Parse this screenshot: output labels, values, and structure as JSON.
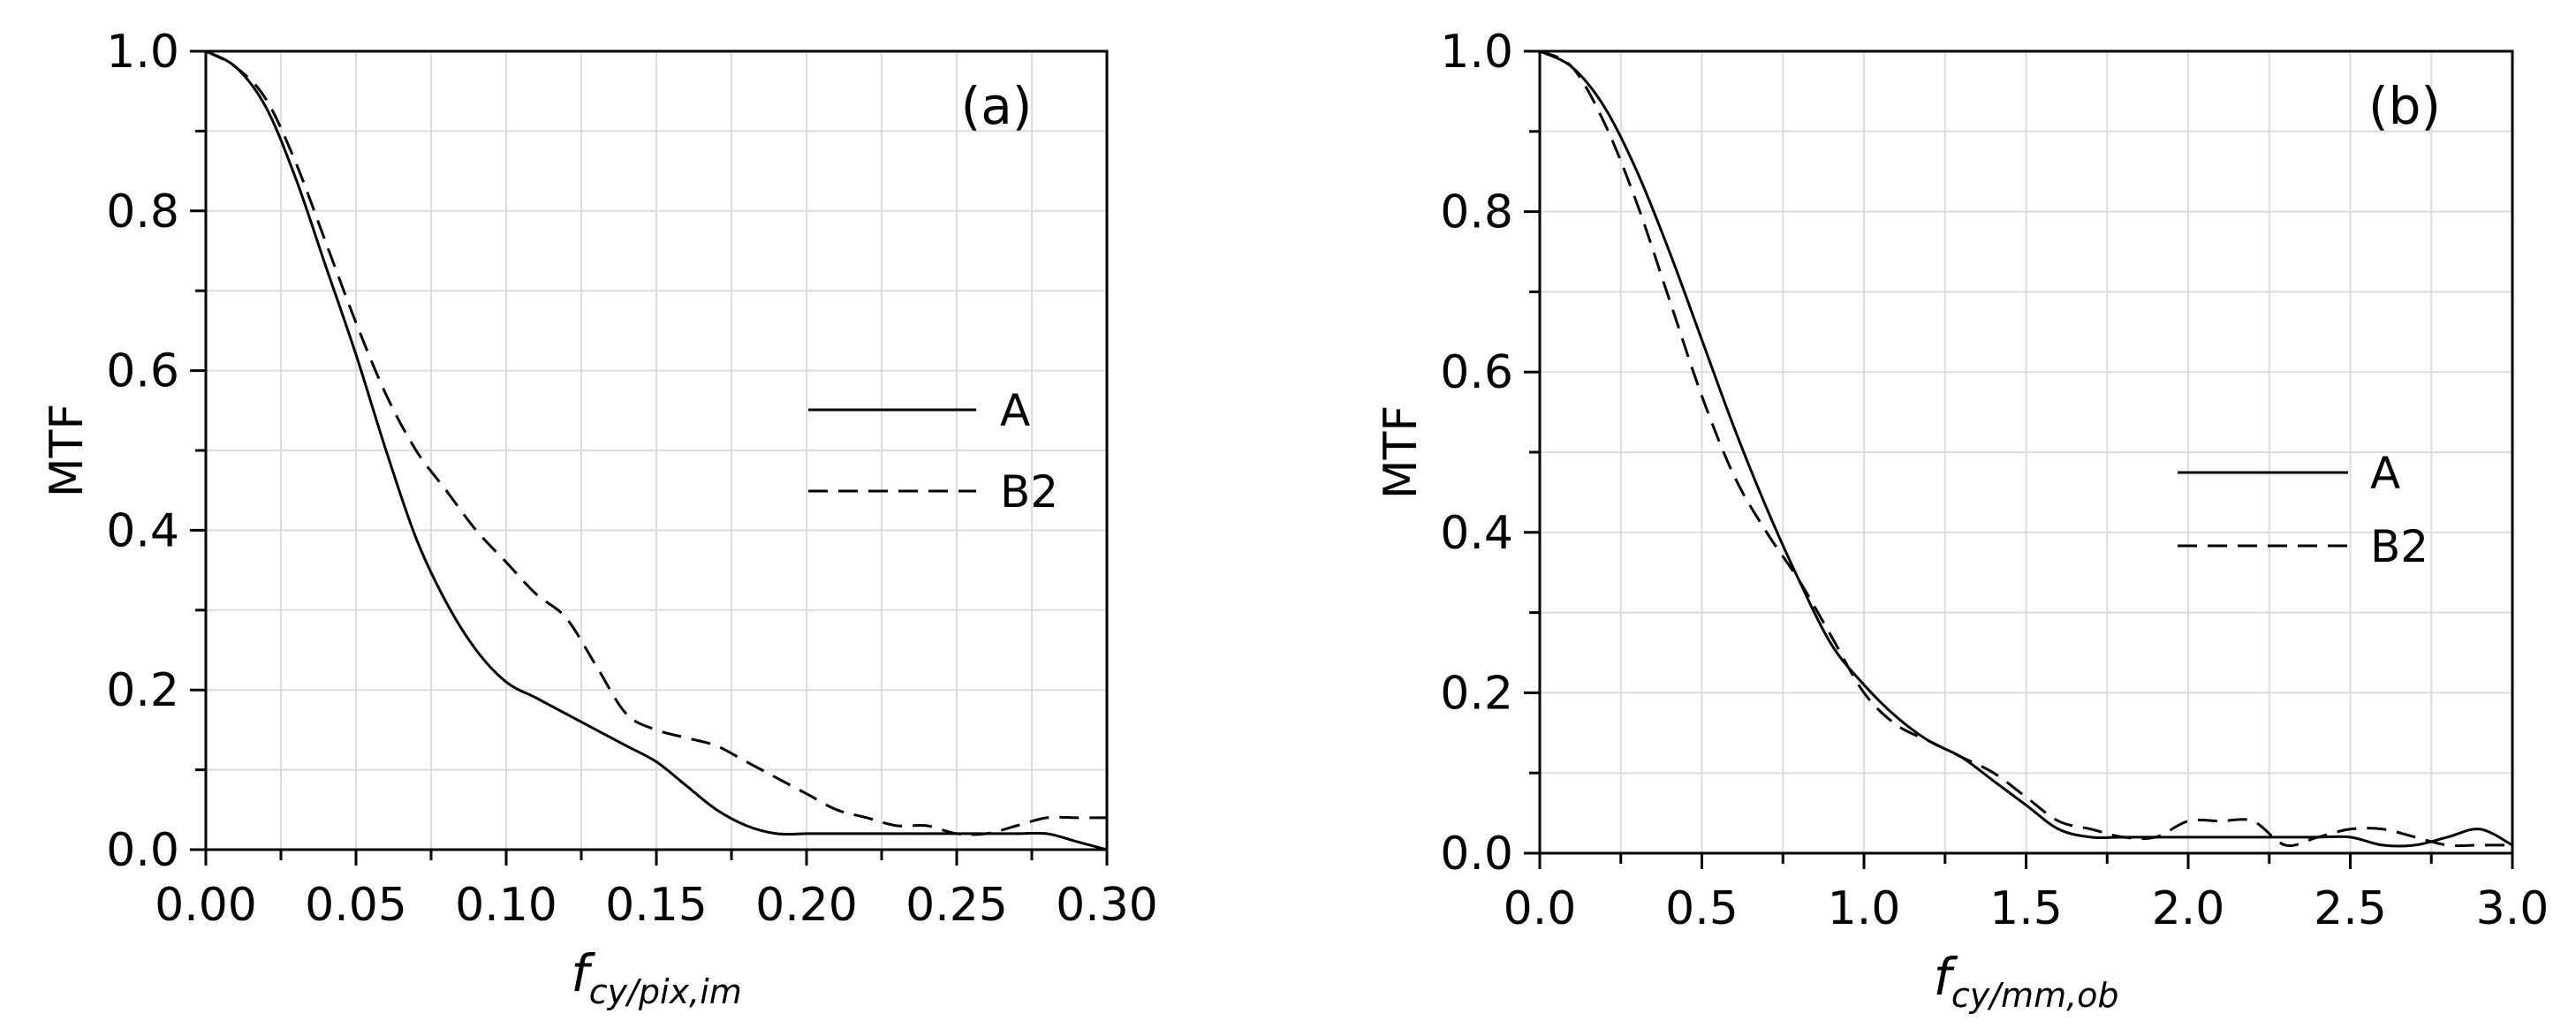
{
  "chart_data": [
    {
      "type": "line",
      "panel_label": "(a)",
      "ylabel": "MTF",
      "xlabel": {
        "main": "f",
        "sub": "cy/pix,im"
      },
      "xlim": [
        0,
        0.3
      ],
      "ylim": [
        0,
        1.0
      ],
      "x_ticks": [
        "0.00",
        "0.05",
        "0.10",
        "0.15",
        "0.20",
        "0.25",
        "0.30"
      ],
      "y_ticks": [
        "0.0",
        "0.2",
        "0.4",
        "0.6",
        "0.8",
        "1.0"
      ],
      "grid": true,
      "legend_position": "right-middle",
      "series": [
        {
          "name": "A",
          "style": "solid",
          "x": [
            0,
            0.01,
            0.02,
            0.03,
            0.04,
            0.05,
            0.06,
            0.07,
            0.08,
            0.09,
            0.1,
            0.11,
            0.12,
            0.13,
            0.14,
            0.15,
            0.16,
            0.17,
            0.18,
            0.19,
            0.2,
            0.21,
            0.22,
            0.23,
            0.24,
            0.25,
            0.26,
            0.27,
            0.28,
            0.29,
            0.3
          ],
          "y": [
            1.0,
            0.98,
            0.93,
            0.84,
            0.73,
            0.62,
            0.5,
            0.39,
            0.31,
            0.25,
            0.21,
            0.19,
            0.17,
            0.15,
            0.13,
            0.11,
            0.08,
            0.05,
            0.03,
            0.02,
            0.02,
            0.02,
            0.02,
            0.02,
            0.02,
            0.02,
            0.02,
            0.02,
            0.02,
            0.01,
            0.0
          ]
        },
        {
          "name": "B2",
          "style": "dashed",
          "x": [
            0,
            0.01,
            0.02,
            0.03,
            0.04,
            0.05,
            0.06,
            0.07,
            0.08,
            0.09,
            0.1,
            0.11,
            0.12,
            0.13,
            0.14,
            0.15,
            0.16,
            0.17,
            0.18,
            0.19,
            0.2,
            0.21,
            0.22,
            0.23,
            0.24,
            0.25,
            0.26,
            0.27,
            0.28,
            0.29,
            0.3
          ],
          "y": [
            1.0,
            0.98,
            0.94,
            0.86,
            0.76,
            0.66,
            0.57,
            0.5,
            0.45,
            0.4,
            0.36,
            0.32,
            0.29,
            0.23,
            0.17,
            0.15,
            0.14,
            0.13,
            0.11,
            0.09,
            0.07,
            0.05,
            0.04,
            0.03,
            0.03,
            0.02,
            0.02,
            0.03,
            0.04,
            0.04,
            0.04
          ]
        }
      ]
    },
    {
      "type": "line",
      "panel_label": "(b)",
      "ylabel": "MTF",
      "xlabel": {
        "main": "f",
        "sub": "cy/mm,ob"
      },
      "xlim": [
        0,
        3.0
      ],
      "ylim": [
        0,
        1.0
      ],
      "x_ticks": [
        "0.0",
        "0.5",
        "1.0",
        "1.5",
        "2.0",
        "2.5",
        "3.0"
      ],
      "y_ticks": [
        "0.0",
        "0.2",
        "0.4",
        "0.6",
        "0.8",
        "1.0"
      ],
      "grid": true,
      "legend_position": "right-middle",
      "series": [
        {
          "name": "A",
          "style": "solid",
          "x": [
            0,
            0.1,
            0.2,
            0.3,
            0.4,
            0.5,
            0.6,
            0.7,
            0.8,
            0.9,
            1.0,
            1.1,
            1.2,
            1.3,
            1.4,
            1.5,
            1.6,
            1.7,
            1.8,
            1.9,
            2.0,
            2.1,
            2.2,
            2.3,
            2.4,
            2.5,
            2.6,
            2.7,
            2.8,
            2.9,
            3.0
          ],
          "y": [
            1.0,
            0.98,
            0.93,
            0.85,
            0.75,
            0.64,
            0.53,
            0.43,
            0.34,
            0.26,
            0.21,
            0.17,
            0.14,
            0.12,
            0.09,
            0.06,
            0.03,
            0.02,
            0.02,
            0.02,
            0.02,
            0.02,
            0.02,
            0.02,
            0.02,
            0.02,
            0.01,
            0.01,
            0.02,
            0.03,
            0.01
          ]
        },
        {
          "name": "B2",
          "style": "dashed",
          "x": [
            0,
            0.1,
            0.2,
            0.3,
            0.4,
            0.5,
            0.6,
            0.7,
            0.8,
            0.9,
            1.0,
            1.1,
            1.2,
            1.3,
            1.4,
            1.5,
            1.6,
            1.7,
            1.8,
            1.9,
            2.0,
            2.1,
            2.2,
            2.3,
            2.4,
            2.5,
            2.6,
            2.7,
            2.8,
            2.9,
            3.0
          ],
          "y": [
            1.0,
            0.98,
            0.91,
            0.81,
            0.69,
            0.57,
            0.47,
            0.4,
            0.34,
            0.27,
            0.2,
            0.16,
            0.14,
            0.12,
            0.1,
            0.07,
            0.04,
            0.03,
            0.02,
            0.02,
            0.04,
            0.04,
            0.04,
            0.01,
            0.02,
            0.03,
            0.03,
            0.02,
            0.01,
            0.01,
            0.01
          ]
        }
      ]
    }
  ]
}
